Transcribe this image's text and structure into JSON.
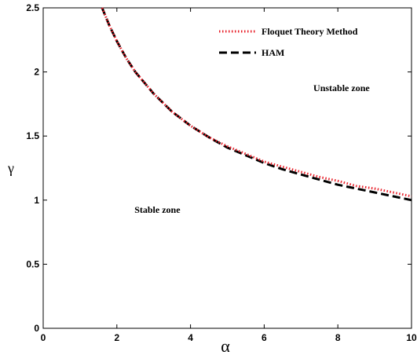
{
  "chart_data": {
    "type": "line",
    "xlabel": "α",
    "ylabel": "γ",
    "xlim": [
      0,
      10
    ],
    "ylim": [
      0,
      2.5
    ],
    "x_ticks": [
      0,
      2,
      4,
      6,
      8,
      10
    ],
    "y_ticks": [
      0,
      0.5,
      1,
      1.5,
      2,
      2.5
    ],
    "x_tick_labels": [
      "0",
      "2",
      "4",
      "6",
      "8",
      "10"
    ],
    "y_tick_labels": [
      "0",
      "0.5",
      "1",
      "1.5",
      "2",
      "2.5"
    ],
    "grid": false,
    "legend_position": "top-right",
    "series": [
      {
        "name": "Floquet Theory Method",
        "color": "#e8202a",
        "style": "dotted",
        "x": [
          1.6,
          1.8,
          2.0,
          2.25,
          2.5,
          3.0,
          3.5,
          4.0,
          4.5,
          5.0,
          5.5,
          6.0,
          6.5,
          7.0,
          7.5,
          8.0,
          8.5,
          9.0,
          9.5,
          10.0
        ],
        "y": [
          2.5,
          2.36,
          2.24,
          2.11,
          2.0,
          1.83,
          1.69,
          1.58,
          1.49,
          1.42,
          1.36,
          1.3,
          1.26,
          1.22,
          1.18,
          1.15,
          1.11,
          1.09,
          1.06,
          1.03
        ]
      },
      {
        "name": "HAM",
        "color": "#000000",
        "style": "dashed",
        "x": [
          1.6,
          1.8,
          2.0,
          2.25,
          2.5,
          3.0,
          3.5,
          4.0,
          4.5,
          5.0,
          5.5,
          6.0,
          6.5,
          7.0,
          7.5,
          8.0,
          8.5,
          9.0,
          9.5,
          10.0
        ],
        "y": [
          2.5,
          2.36,
          2.24,
          2.11,
          2.0,
          1.83,
          1.69,
          1.58,
          1.49,
          1.41,
          1.35,
          1.29,
          1.24,
          1.2,
          1.16,
          1.12,
          1.09,
          1.06,
          1.03,
          1.0
        ]
      }
    ],
    "annotations": [
      {
        "text": "Unstable zone",
        "x": 8.1,
        "y": 1.85
      },
      {
        "text": "Stable zone",
        "x": 3.1,
        "y": 0.9
      }
    ]
  }
}
